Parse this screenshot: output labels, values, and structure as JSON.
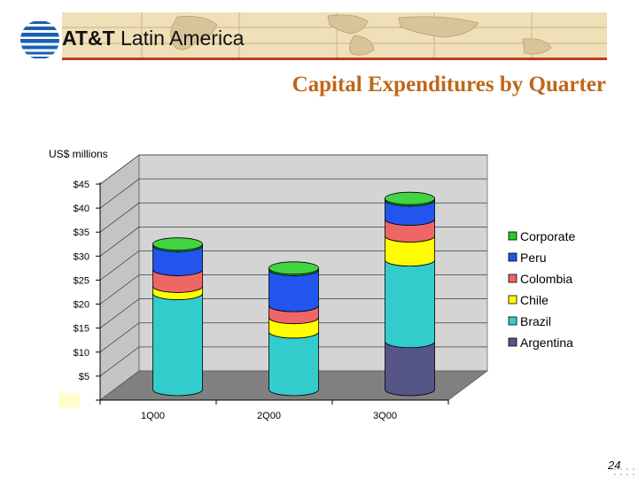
{
  "header": {
    "logo_brand": "AT&T",
    "logo_region": "Latin America"
  },
  "slide": {
    "title": "Capital Expenditures by Quarter",
    "page_number": "24"
  },
  "colors": {
    "Corporate": "#22cc22",
    "Peru": "#2255ee",
    "Colombia": "#ee6666",
    "Chile": "#ffff00",
    "Brazil": "#33cccc",
    "Argentina": "#555588"
  },
  "chart_data": {
    "type": "bar",
    "stacked": true,
    "three_d": true,
    "categories": [
      "1Q00",
      "2Q00",
      "3Q00"
    ],
    "ylabel": "US$ millions",
    "ylim": [
      0,
      45
    ],
    "yticks": [
      "$5",
      "$10",
      "$15",
      "$20",
      "$25",
      "$30",
      "$35",
      "$40",
      "$45"
    ],
    "ytick_values": [
      5,
      10,
      15,
      20,
      25,
      30,
      35,
      40,
      45
    ],
    "grid": true,
    "legend_position": "right",
    "legend": [
      "Corporate",
      "Peru",
      "Colombia",
      "Chile",
      "Brazil",
      "Argentina"
    ],
    "series": [
      {
        "name": "Argentina",
        "values": [
          0,
          0,
          10
        ]
      },
      {
        "name": "Brazil",
        "values": [
          20,
          12,
          17
        ]
      },
      {
        "name": "Chile",
        "values": [
          1.5,
          3,
          5
        ]
      },
      {
        "name": "Colombia",
        "values": [
          3.5,
          2.5,
          3.5
        ]
      },
      {
        "name": "Peru",
        "values": [
          5,
          7.5,
          4
        ]
      },
      {
        "name": "Corporate",
        "values": [
          0.3,
          0.3,
          0.3
        ]
      }
    ]
  }
}
